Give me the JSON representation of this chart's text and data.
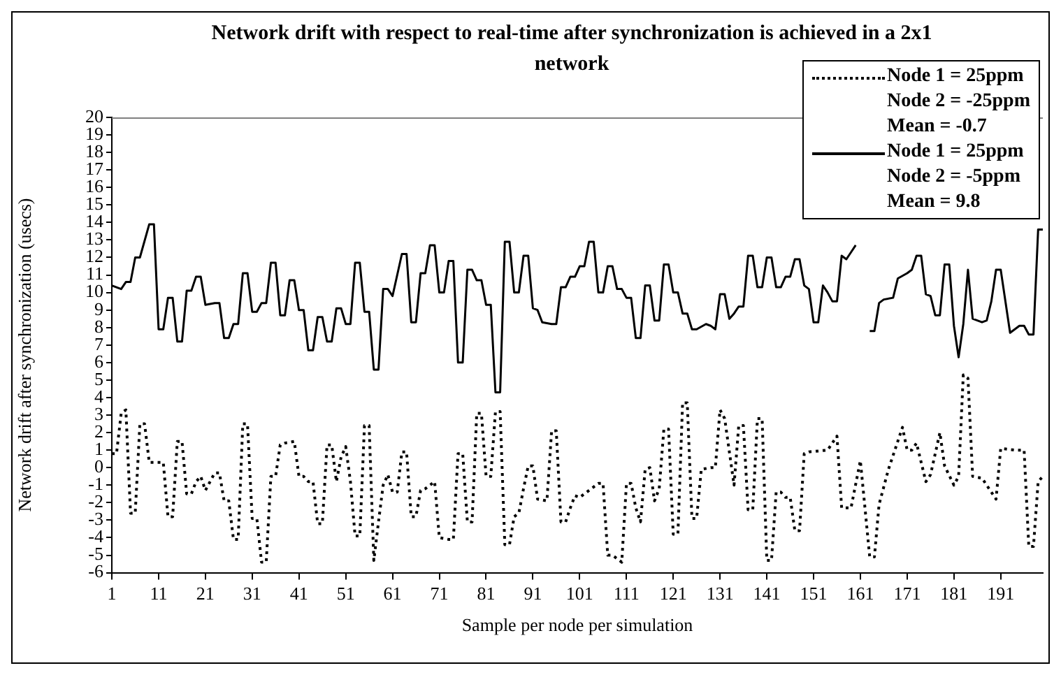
{
  "chart_data": {
    "type": "line",
    "title": "Network drift with respect to real-time after synchronization is achieved in a 2x1 network",
    "xlabel": "Sample per node per simulation",
    "ylabel": "Network drift after synchronization (usecs)",
    "xlim": [
      1,
      200
    ],
    "xticks": [
      1,
      11,
      21,
      31,
      41,
      51,
      61,
      71,
      81,
      91,
      101,
      111,
      121,
      131,
      141,
      151,
      161,
      171,
      181,
      191
    ],
    "ylim": [
      -6,
      20
    ],
    "yticks": [
      -6,
      -5,
      -4,
      -3,
      -2,
      -1,
      0,
      1,
      2,
      3,
      4,
      5,
      6,
      7,
      8,
      9,
      10,
      11,
      12,
      13,
      14,
      15,
      16,
      17,
      18,
      19,
      20
    ],
    "grid": false,
    "legend": "top right",
    "marker": "none",
    "series": [
      {
        "name": "Node 1 = 25ppm\nNode 2 = -25ppm\nMean = -0.7",
        "color": "#000000",
        "line_style": "dotted",
        "x": [
          1,
          2,
          3,
          4,
          5,
          6,
          7,
          8,
          9,
          12,
          13,
          14,
          15,
          16,
          17,
          18,
          19,
          20,
          21,
          23,
          24,
          25,
          26,
          27,
          28,
          29,
          30,
          31,
          32,
          33,
          34,
          35,
          36,
          37,
          38,
          40,
          41,
          42,
          43,
          44,
          45,
          46,
          47,
          48,
          49,
          50,
          51,
          52,
          53,
          54,
          55,
          56,
          57,
          58,
          59,
          60,
          61,
          62,
          63,
          64,
          65,
          66,
          67,
          68,
          70,
          71,
          73,
          74,
          75,
          76,
          77,
          78,
          79,
          80,
          81,
          82,
          83,
          84,
          85,
          86,
          87,
          88,
          89,
          90,
          91,
          92,
          94,
          95,
          96,
          97,
          98,
          99,
          100,
          101,
          103,
          105,
          106,
          107,
          108,
          110,
          111,
          112,
          113,
          114,
          115,
          116,
          117,
          118,
          119,
          120,
          121,
          122,
          123,
          124,
          125,
          126,
          127,
          129,
          130,
          131,
          132,
          134,
          135,
          136,
          137,
          138,
          139,
          140,
          141,
          142,
          143,
          144,
          145,
          146,
          147,
          148,
          149,
          150,
          154,
          156,
          157,
          159,
          161,
          163,
          164,
          165,
          167,
          170,
          171,
          172,
          173,
          175,
          176,
          178,
          179,
          181,
          182,
          183,
          184,
          185,
          187,
          190,
          191,
          194,
          196,
          197,
          198,
          199,
          200
        ],
        "values": [
          0.8,
          0.8,
          3.1,
          3.3,
          -2.6,
          -2.6,
          2.5,
          2.5,
          0.3,
          0.3,
          -2.8,
          -2.8,
          1.5,
          1.5,
          -1.5,
          -1.5,
          -0.8,
          -0.5,
          -1.3,
          -0.3,
          -0.3,
          -1.9,
          -1.9,
          -4.1,
          -4.1,
          2.5,
          2.5,
          -2.9,
          -2.9,
          -5.4,
          -5.4,
          -0.5,
          -0.5,
          1.3,
          1.4,
          1.5,
          -0.5,
          -0.5,
          -0.8,
          -0.8,
          -3.2,
          -3.2,
          1.3,
          1.3,
          -0.8,
          0.6,
          1.2,
          -0.8,
          -3.9,
          -3.9,
          2.4,
          2.4,
          -5.3,
          -3.1,
          -1.0,
          -0.4,
          -1.4,
          -1.4,
          0.9,
          0.9,
          -2.8,
          -2.8,
          -1.3,
          -1.2,
          -0.8,
          -4.0,
          -4.1,
          -4.1,
          0.8,
          0.8,
          -3.1,
          -3.1,
          3.1,
          3.1,
          -0.5,
          -0.5,
          3.2,
          3.2,
          -4.4,
          -4.4,
          -2.8,
          -2.6,
          -1.2,
          0.1,
          0.1,
          -1.8,
          -1.9,
          2.1,
          2.1,
          -3.1,
          -3.1,
          -2.3,
          -1.6,
          -1.7,
          -1.3,
          -0.9,
          -0.9,
          -5.0,
          -5.0,
          -5.4,
          -0.9,
          -0.9,
          -2.3,
          -3.1,
          -0.1,
          0.0,
          -1.9,
          -1.2,
          2.2,
          2.2,
          -3.8,
          -3.8,
          3.7,
          3.7,
          -2.9,
          -2.9,
          -0.1,
          0.0,
          0.0,
          3.3,
          2.8,
          -1.0,
          2.4,
          2.4,
          -2.4,
          -2.4,
          2.8,
          2.8,
          -5.3,
          -5.3,
          -1.4,
          -1.4,
          -1.7,
          -1.7,
          -3.6,
          -3.6,
          0.8,
          0.9,
          1.0,
          1.8,
          -2.3,
          -2.3,
          0.4,
          -5.1,
          -5.1,
          -2.1,
          -0.1,
          2.3,
          1.0,
          1.0,
          1.4,
          -0.8,
          -0.4,
          2.0,
          0.1,
          -1.0,
          -0.5,
          5.3,
          5.1,
          -0.5,
          -0.6,
          -1.8,
          1.1,
          1.0,
          1.0,
          -4.5,
          -4.5,
          -0.8,
          -0.5
        ]
      },
      {
        "name": "Node 1 = 25ppm\nNode 2 = -5ppm\nMean = 9.8",
        "color": "#000000",
        "line_style": "solid",
        "x": [
          1,
          3,
          4,
          5,
          6,
          7,
          9,
          10,
          11,
          12,
          13,
          14,
          15,
          16,
          17,
          18,
          19,
          20,
          21,
          23,
          24,
          25,
          26,
          27,
          28,
          29,
          30,
          31,
          32,
          33,
          34,
          35,
          36,
          37,
          38,
          39,
          40,
          41,
          42,
          43,
          44,
          45,
          46,
          47,
          48,
          49,
          50,
          51,
          52,
          53,
          54,
          55,
          56,
          57,
          58,
          59,
          60,
          61,
          63,
          64,
          65,
          66,
          67,
          68,
          69,
          70,
          71,
          72,
          73,
          74,
          75,
          76,
          77,
          78,
          79,
          80,
          81,
          82,
          83,
          84,
          85,
          86,
          87,
          88,
          89,
          90,
          91,
          92,
          93,
          95,
          96,
          97,
          98,
          99,
          100,
          101,
          102,
          103,
          104,
          105,
          106,
          107,
          108,
          109,
          110,
          111,
          112,
          113,
          114,
          115,
          116,
          117,
          118,
          119,
          120,
          121,
          122,
          123,
          124,
          125,
          126,
          128,
          129,
          130,
          131,
          132,
          133,
          134,
          135,
          136,
          137,
          138,
          139,
          140,
          141,
          142,
          143,
          144,
          145,
          146,
          147,
          148,
          149,
          150,
          151,
          152,
          153,
          154,
          155,
          156,
          157,
          158,
          159,
          160,
          161,
          162,
          163,
          164,
          165,
          166,
          168,
          169,
          171,
          172,
          173,
          174,
          175,
          176,
          177,
          178,
          179,
          180,
          181,
          182,
          183,
          184,
          185,
          187,
          188,
          189,
          190,
          191,
          193,
          195,
          196,
          197,
          198,
          199,
          200
        ],
        "values": [
          10.4,
          10.2,
          10.6,
          10.6,
          12.0,
          12.0,
          13.9,
          13.9,
          7.9,
          7.9,
          9.7,
          9.7,
          7.2,
          7.2,
          10.1,
          10.1,
          10.9,
          10.9,
          9.3,
          9.4,
          9.4,
          7.4,
          7.4,
          8.2,
          8.2,
          11.1,
          11.1,
          8.9,
          8.9,
          9.4,
          9.4,
          11.7,
          11.7,
          8.7,
          8.7,
          10.7,
          10.7,
          9.0,
          9.0,
          6.7,
          6.7,
          8.6,
          8.6,
          7.2,
          7.2,
          9.1,
          9.1,
          8.2,
          8.2,
          11.7,
          11.7,
          8.9,
          8.9,
          5.6,
          5.6,
          10.2,
          10.2,
          9.8,
          12.2,
          12.2,
          8.3,
          8.3,
          11.1,
          11.1,
          12.7,
          12.7,
          10.0,
          10.0,
          11.8,
          11.8,
          6.0,
          6.0,
          11.3,
          11.3,
          10.7,
          10.7,
          9.3,
          9.3,
          4.3,
          4.3,
          12.9,
          12.9,
          10.0,
          10.0,
          12.1,
          12.1,
          9.1,
          9.0,
          8.3,
          8.2,
          8.2,
          10.3,
          10.3,
          10.9,
          10.9,
          11.5,
          11.5,
          12.9,
          12.9,
          10.0,
          10.0,
          11.5,
          11.5,
          10.2,
          10.2,
          9.7,
          9.7,
          7.4,
          7.4,
          10.4,
          10.4,
          8.4,
          8.4,
          11.6,
          11.6,
          10.0,
          10.0,
          8.8,
          8.8,
          7.9,
          7.9,
          8.2,
          8.1,
          7.9,
          9.9,
          9.9,
          8.5,
          8.8,
          9.2,
          9.2,
          12.1,
          12.1,
          10.3,
          10.3,
          12.0,
          12.0,
          10.3,
          10.3,
          10.9,
          10.9,
          11.9,
          11.9,
          10.4,
          10.2,
          8.3,
          8.3,
          10.4,
          10.0,
          9.5,
          9.5,
          12.1,
          11.9,
          12.3,
          12.7,
          null,
          null,
          7.8,
          7.8,
          9.4,
          9.6,
          9.7,
          10.8,
          11.1,
          11.3,
          12.1,
          12.1,
          9.9,
          9.8,
          8.7,
          8.7,
          11.6,
          11.6,
          8.1,
          6.3,
          8.2,
          11.3,
          8.5,
          8.3,
          8.4,
          9.5,
          11.3,
          11.3,
          7.7,
          8.1,
          8.1,
          7.6,
          7.6,
          13.6,
          13.6
        ]
      }
    ]
  }
}
